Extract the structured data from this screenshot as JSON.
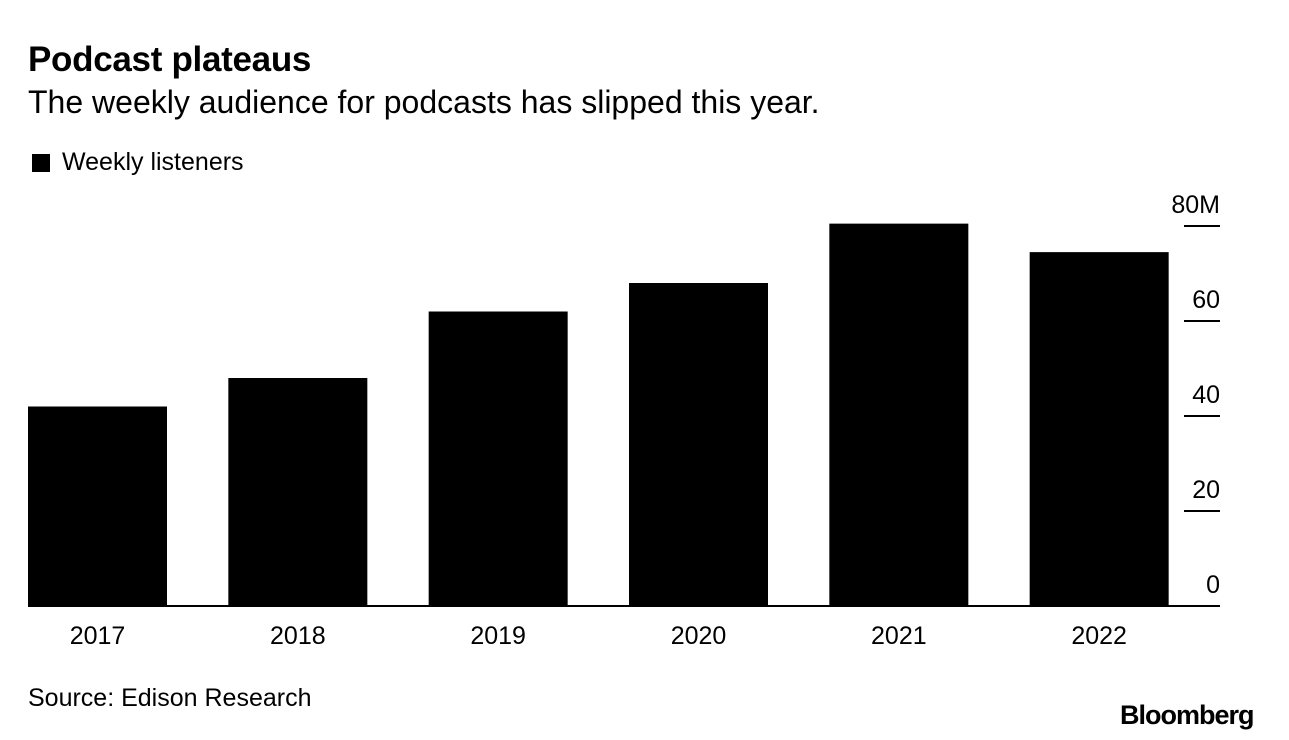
{
  "title": "Podcast plateaus",
  "subtitle": "The weekly audience for podcasts has slipped this year.",
  "legend": {
    "label": "Weekly listeners"
  },
  "source": "Source: Edison Research",
  "brand": "Bloomberg",
  "chart_data": {
    "type": "bar",
    "categories": [
      "2017",
      "2018",
      "2019",
      "2020",
      "2021",
      "2022"
    ],
    "series": [
      {
        "name": "Weekly listeners",
        "values": [
          42,
          48,
          62,
          68,
          80.5,
          74.5
        ],
        "color": "#000000"
      }
    ],
    "ylim": [
      0,
      80
    ],
    "yticks": [
      0,
      20,
      40,
      60,
      80
    ],
    "ytick_labels": [
      "0",
      "20",
      "40",
      "60",
      "80M"
    ],
    "y_axis_side": "right",
    "grid": false,
    "legend_position": "top-left"
  }
}
